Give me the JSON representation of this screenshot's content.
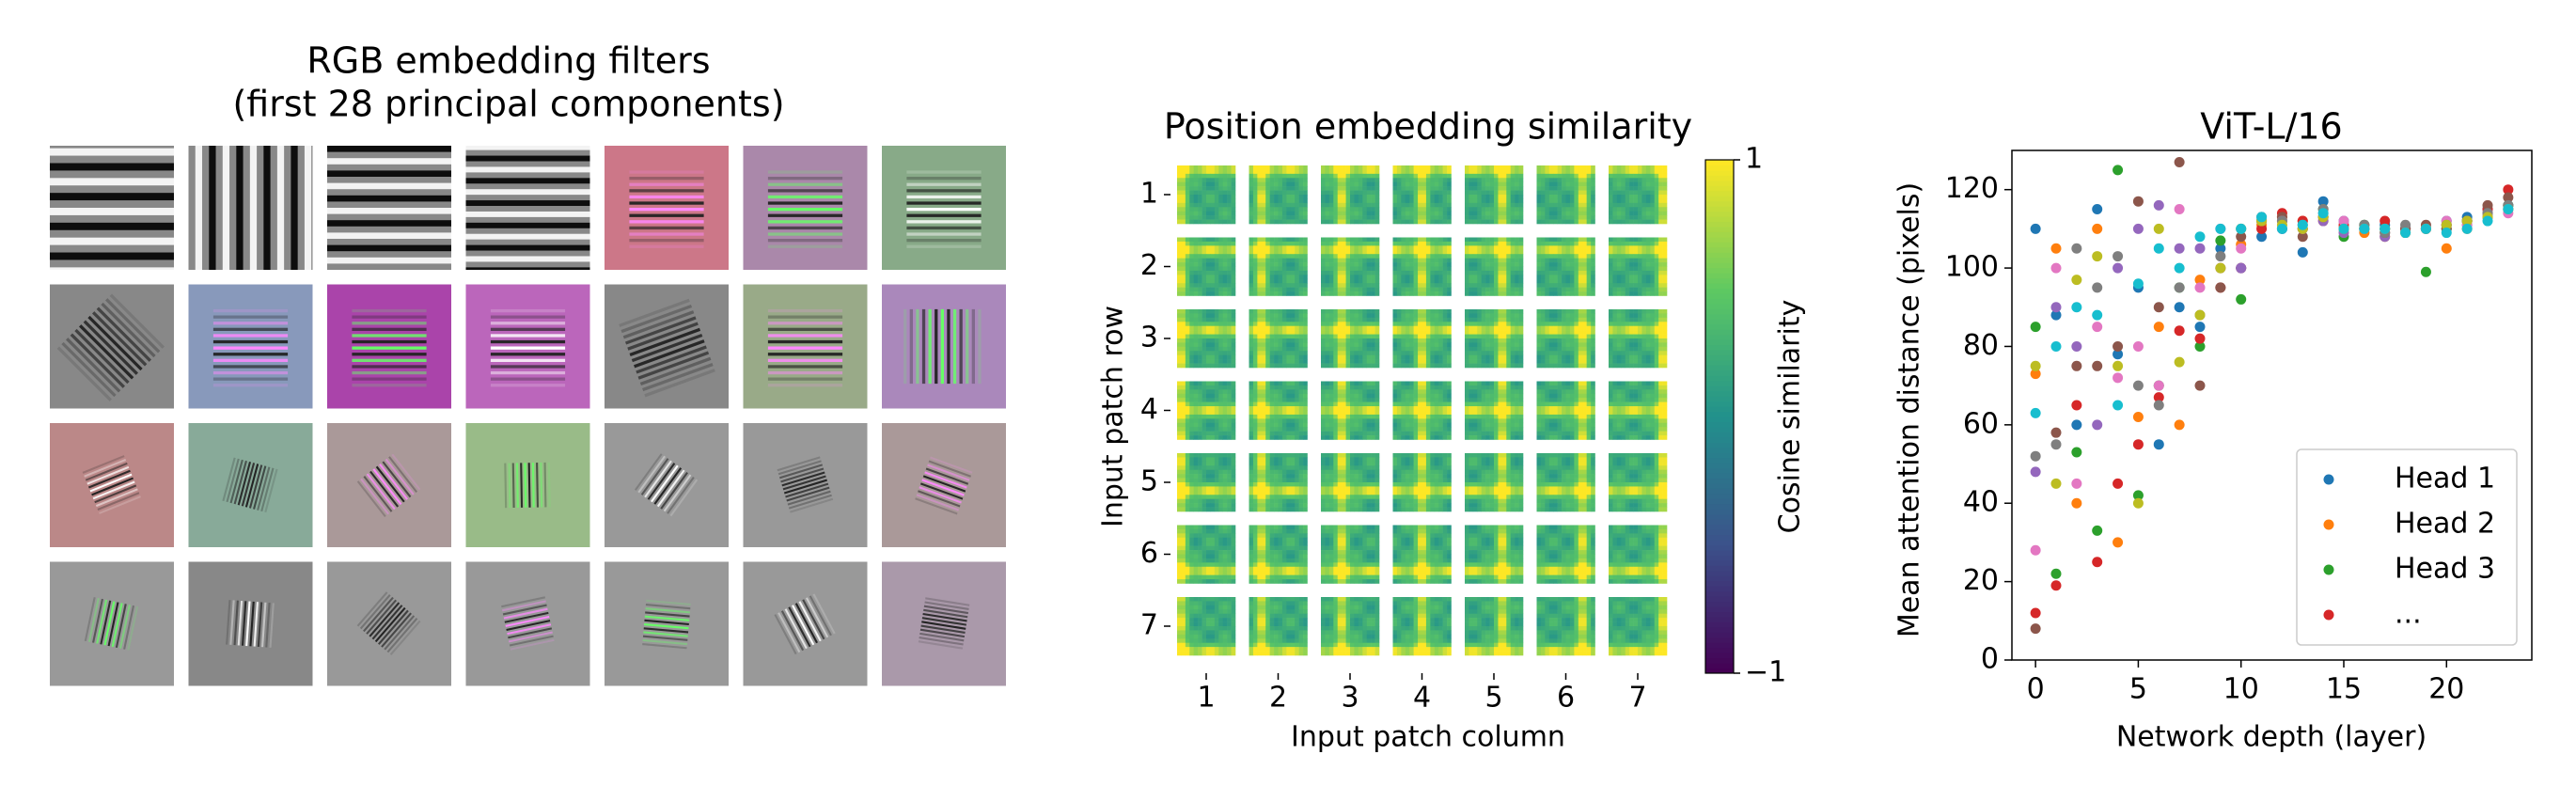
{
  "chart_data": [
    {
      "type": "image-grid",
      "title": "RGB embedding filters",
      "subtitle": "(first 28 principal components)"
    },
    {
      "type": "heatmap-grid",
      "title": "Position embedding similarity",
      "xlabel": "Input patch column",
      "ylabel": "Input patch row",
      "xticks": [
        1,
        2,
        3,
        4,
        5,
        6,
        7
      ],
      "yticks": [
        1,
        2,
        3,
        4,
        5,
        6,
        7
      ],
      "colormap": "viridis",
      "colorbar": {
        "label": "Cosine similarity",
        "clim": [
          -1,
          1
        ],
        "ticks": [
          1,
          {
            "value": -1,
            "label": "−1"
          }
        ]
      }
    },
    {
      "type": "scatter",
      "title": "ViT-L/16",
      "xlabel": "Network depth (layer)",
      "ylabel": "Mean attention distance (pixels)",
      "xlim": [
        -1.15,
        24.15
      ],
      "ylim": [
        0,
        130
      ],
      "xticks": [
        0,
        5,
        10,
        15,
        20
      ],
      "yticks": [
        0,
        20,
        40,
        60,
        80,
        100,
        120
      ],
      "legend": "lower right",
      "x": [
        0,
        1,
        2,
        3,
        4,
        5,
        6,
        7,
        8,
        9,
        10,
        11,
        12,
        13,
        14,
        15,
        16,
        17,
        18,
        19,
        20,
        21,
        22,
        23
      ],
      "series": [
        {
          "name": "Head 1",
          "color": "#1f77b4",
          "values": [
            110,
            88,
            60,
            115,
            78,
            95,
            55,
            90,
            85,
            105,
            100,
            108,
            110,
            104,
            117,
            112,
            110,
            111,
            110,
            110,
            112,
            113,
            115,
            116
          ]
        },
        {
          "name": "Head 2",
          "color": "#ff7f0e",
          "values": [
            73,
            105,
            40,
            110,
            30,
            62,
            85,
            60,
            97,
            100,
            106,
            111,
            113,
            112,
            112,
            110,
            109,
            108,
            110,
            110,
            105,
            110,
            114,
            115
          ]
        },
        {
          "name": "Head 3",
          "color": "#2ca02c",
          "values": [
            85,
            22,
            53,
            33,
            125,
            42,
            70,
            95,
            80,
            107,
            92,
            113,
            112,
            110,
            115,
            108,
            111,
            110,
            109,
            99,
            110,
            112,
            113,
            116
          ]
        },
        {
          "name": "...",
          "color": "#d62728",
          "values": [
            12,
            19,
            65,
            25,
            45,
            55,
            67,
            84,
            82,
            95,
            100,
            110,
            114,
            112,
            113,
            111,
            110,
            112,
            110,
            110,
            111,
            112,
            115,
            120
          ]
        },
        {
          "color": "#9467bd",
          "values": [
            48,
            90,
            80,
            60,
            100,
            110,
            116,
            105,
            105,
            100,
            100,
            112,
            110,
            110,
            112,
            109,
            110,
            108,
            110,
            110,
            111,
            111,
            114,
            115
          ]
        },
        {
          "color": "#8c564b",
          "values": [
            8,
            58,
            75,
            75,
            80,
            117,
            90,
            127,
            70,
            95,
            108,
            112,
            113,
            108,
            113,
            110,
            110,
            109,
            110,
            111,
            110,
            112,
            116,
            118
          ]
        },
        {
          "color": "#e377c2",
          "values": [
            28,
            100,
            45,
            85,
            72,
            80,
            70,
            115,
            95,
            110,
            105,
            113,
            112,
            110,
            114,
            112,
            110,
            110,
            109,
            110,
            112,
            111,
            113,
            114
          ]
        },
        {
          "color": "#7f7f7f",
          "values": [
            52,
            55,
            105,
            95,
            103,
            70,
            65,
            95,
            88,
            103,
            110,
            112,
            112,
            111,
            115,
            110,
            111,
            109,
            111,
            110,
            111,
            112,
            114,
            116
          ]
        },
        {
          "color": "#bcbd22",
          "values": [
            75,
            45,
            97,
            103,
            75,
            40,
            110,
            76,
            88,
            100,
            110,
            112,
            111,
            110,
            113,
            110,
            110,
            110,
            109,
            110,
            111,
            112,
            113,
            115
          ]
        },
        {
          "color": "#17becf",
          "values": [
            63,
            80,
            90,
            88,
            65,
            96,
            105,
            100,
            108,
            110,
            110,
            113,
            110,
            111,
            114,
            110,
            110,
            110,
            109,
            110,
            109,
            110,
            112,
            115
          ]
        }
      ]
    }
  ]
}
